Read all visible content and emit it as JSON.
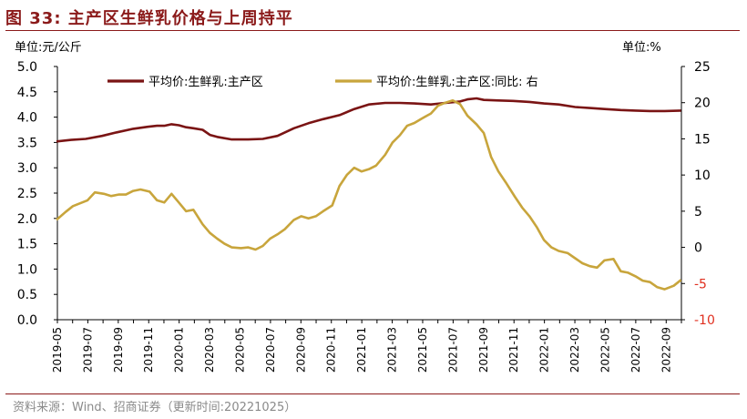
{
  "title": "图 33:  主产区生鲜乳价格与上周持平",
  "source": "资料来源：Wind、招商证券（更新时间:20221025）",
  "colors": {
    "price": "#7a1414",
    "yoy": "#c8a53c",
    "negative_tick": "#e03020",
    "accent": "#8b1a1a"
  },
  "chart_data": {
    "type": "line",
    "title": "主产区生鲜乳价格与上周持平",
    "left_axis": {
      "label": "单位:元/公斤",
      "range": [
        0,
        5
      ],
      "ticks": [
        "0.0",
        "0.5",
        "1.0",
        "1.5",
        "2.0",
        "2.5",
        "3.0",
        "3.5",
        "4.0",
        "4.5",
        "5.0"
      ]
    },
    "right_axis": {
      "label": "单位:%",
      "range": [
        -10,
        25
      ],
      "ticks": [
        "-10",
        "-5",
        "0",
        "5",
        "10",
        "15",
        "20",
        "25"
      ]
    },
    "x_labels": [
      "2019-05",
      "2019-07",
      "2019-09",
      "2019-11",
      "2020-01",
      "2020-03",
      "2020-05",
      "2020-07",
      "2020-09",
      "2020-11",
      "2021-01",
      "2021-03",
      "2021-05",
      "2021-07",
      "2021-09",
      "2021-11",
      "2022-01",
      "2022-03",
      "2022-05",
      "2022-07",
      "2022-09"
    ],
    "x_range": [
      2019.375,
      2022.792
    ],
    "series": [
      {
        "name": "平均价:生鲜乳:主产区",
        "axis": "left",
        "color": "#7a1414",
        "points": [
          [
            2019.37,
            3.52
          ],
          [
            2019.45,
            3.55
          ],
          [
            2019.53,
            3.57
          ],
          [
            2019.62,
            3.63
          ],
          [
            2019.7,
            3.7
          ],
          [
            2019.79,
            3.77
          ],
          [
            2019.87,
            3.81
          ],
          [
            2019.92,
            3.83
          ],
          [
            2019.96,
            3.83
          ],
          [
            2020.0,
            3.86
          ],
          [
            2020.04,
            3.84
          ],
          [
            2020.08,
            3.8
          ],
          [
            2020.12,
            3.78
          ],
          [
            2020.17,
            3.75
          ],
          [
            2020.21,
            3.65
          ],
          [
            2020.25,
            3.61
          ],
          [
            2020.33,
            3.56
          ],
          [
            2020.42,
            3.56
          ],
          [
            2020.5,
            3.57
          ],
          [
            2020.58,
            3.63
          ],
          [
            2020.67,
            3.78
          ],
          [
            2020.75,
            3.88
          ],
          [
            2020.83,
            3.96
          ],
          [
            2020.92,
            4.04
          ],
          [
            2021.0,
            4.16
          ],
          [
            2021.08,
            4.25
          ],
          [
            2021.17,
            4.28
          ],
          [
            2021.25,
            4.28
          ],
          [
            2021.33,
            4.27
          ],
          [
            2021.42,
            4.25
          ],
          [
            2021.5,
            4.28
          ],
          [
            2021.58,
            4.31
          ],
          [
            2021.62,
            4.35
          ],
          [
            2021.67,
            4.37
          ],
          [
            2021.71,
            4.34
          ],
          [
            2021.79,
            4.33
          ],
          [
            2021.87,
            4.32
          ],
          [
            2021.96,
            4.3
          ],
          [
            2022.04,
            4.27
          ],
          [
            2022.12,
            4.25
          ],
          [
            2022.21,
            4.2
          ],
          [
            2022.29,
            4.18
          ],
          [
            2022.37,
            4.16
          ],
          [
            2022.46,
            4.14
          ],
          [
            2022.54,
            4.13
          ],
          [
            2022.62,
            4.12
          ],
          [
            2022.7,
            4.12
          ],
          [
            2022.79,
            4.13
          ]
        ]
      },
      {
        "name": "平均价:生鲜乳:主产区:同比:  右",
        "axis": "right",
        "color": "#c8a53c",
        "points": [
          [
            2019.37,
            3.8
          ],
          [
            2019.42,
            4.9
          ],
          [
            2019.46,
            5.7
          ],
          [
            2019.54,
            6.5
          ],
          [
            2019.58,
            7.6
          ],
          [
            2019.63,
            7.4
          ],
          [
            2019.67,
            7.1
          ],
          [
            2019.71,
            7.3
          ],
          [
            2019.75,
            7.3
          ],
          [
            2019.79,
            7.8
          ],
          [
            2019.83,
            8.0
          ],
          [
            2019.88,
            7.7
          ],
          [
            2019.92,
            6.5
          ],
          [
            2019.96,
            6.2
          ],
          [
            2020.0,
            7.4
          ],
          [
            2020.04,
            6.2
          ],
          [
            2020.08,
            5.0
          ],
          [
            2020.12,
            5.2
          ],
          [
            2020.17,
            3.2
          ],
          [
            2020.21,
            2.0
          ],
          [
            2020.25,
            1.2
          ],
          [
            2020.29,
            0.5
          ],
          [
            2020.33,
            0.0
          ],
          [
            2020.38,
            -0.1
          ],
          [
            2020.42,
            0.0
          ],
          [
            2020.46,
            -0.3
          ],
          [
            2020.5,
            0.2
          ],
          [
            2020.54,
            1.2
          ],
          [
            2020.58,
            1.8
          ],
          [
            2020.62,
            2.5
          ],
          [
            2020.67,
            3.8
          ],
          [
            2020.71,
            4.3
          ],
          [
            2020.75,
            4.0
          ],
          [
            2020.79,
            4.3
          ],
          [
            2020.83,
            5.0
          ],
          [
            2020.88,
            5.8
          ],
          [
            2020.92,
            8.5
          ],
          [
            2020.96,
            10.0
          ],
          [
            2021.0,
            11.0
          ],
          [
            2021.04,
            10.5
          ],
          [
            2021.08,
            10.8
          ],
          [
            2021.12,
            11.3
          ],
          [
            2021.17,
            12.8
          ],
          [
            2021.21,
            14.5
          ],
          [
            2021.25,
            15.5
          ],
          [
            2021.29,
            16.8
          ],
          [
            2021.33,
            17.2
          ],
          [
            2021.37,
            17.8
          ],
          [
            2021.42,
            18.5
          ],
          [
            2021.46,
            19.6
          ],
          [
            2021.5,
            20.0
          ],
          [
            2021.54,
            20.3
          ],
          [
            2021.58,
            19.8
          ],
          [
            2021.62,
            18.2
          ],
          [
            2021.67,
            17.0
          ],
          [
            2021.71,
            15.8
          ],
          [
            2021.75,
            12.5
          ],
          [
            2021.79,
            10.5
          ],
          [
            2021.83,
            9.0
          ],
          [
            2021.88,
            7.0
          ],
          [
            2021.92,
            5.5
          ],
          [
            2021.96,
            4.3
          ],
          [
            2022.0,
            2.8
          ],
          [
            2022.04,
            1.0
          ],
          [
            2022.08,
            0.0
          ],
          [
            2022.12,
            -0.5
          ],
          [
            2022.17,
            -0.8
          ],
          [
            2022.21,
            -1.5
          ],
          [
            2022.25,
            -2.2
          ],
          [
            2022.29,
            -2.6
          ],
          [
            2022.33,
            -2.8
          ],
          [
            2022.37,
            -1.8
          ],
          [
            2022.42,
            -1.6
          ],
          [
            2022.46,
            -3.3
          ],
          [
            2022.5,
            -3.5
          ],
          [
            2022.54,
            -4.0
          ],
          [
            2022.58,
            -4.6
          ],
          [
            2022.62,
            -4.8
          ],
          [
            2022.66,
            -5.5
          ],
          [
            2022.7,
            -5.8
          ],
          [
            2022.75,
            -5.3
          ],
          [
            2022.79,
            -4.5
          ]
        ]
      }
    ]
  }
}
